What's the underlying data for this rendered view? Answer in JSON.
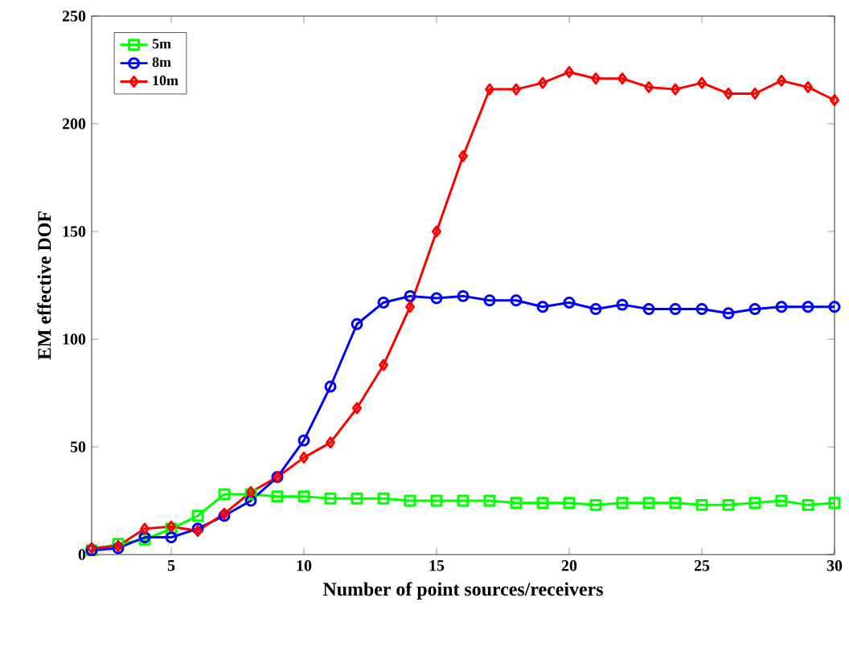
{
  "chart_data": {
    "type": "line",
    "xlabel": "Number of point sources/receivers",
    "ylabel": "EM effective DOF",
    "x": [
      2,
      3,
      4,
      5,
      6,
      7,
      8,
      9,
      10,
      11,
      12,
      13,
      14,
      15,
      16,
      17,
      18,
      19,
      20,
      21,
      22,
      23,
      24,
      25,
      26,
      27,
      28,
      29,
      30
    ],
    "series": [
      {
        "name": "5m",
        "color": "#00ff00",
        "marker": "square",
        "values": [
          2,
          5,
          7,
          12,
          18,
          28,
          28,
          27,
          27,
          26,
          26,
          26,
          25,
          25,
          25,
          25,
          24,
          24,
          24,
          23,
          24,
          24,
          24,
          23,
          23,
          24,
          25,
          23,
          24
        ]
      },
      {
        "name": "8m",
        "color": "#0000ff",
        "marker": "circle",
        "values": [
          2,
          3,
          8,
          8,
          12,
          18,
          25,
          36,
          53,
          78,
          107,
          117,
          120,
          119,
          120,
          118,
          118,
          115,
          117,
          114,
          116,
          114,
          114,
          114,
          112,
          114,
          115,
          115,
          115
        ]
      },
      {
        "name": "10m",
        "color": "#ff0000",
        "marker": "diamond",
        "values": [
          3,
          4,
          12,
          13,
          11,
          19,
          29,
          36,
          45,
          52,
          68,
          88,
          115,
          150,
          185,
          216,
          216,
          219,
          224,
          221,
          221,
          217,
          216,
          219,
          214,
          214,
          220,
          217,
          211
        ]
      }
    ],
    "xlim": [
      2,
      30
    ],
    "ylim": [
      0,
      250
    ],
    "xticks": [
      5,
      10,
      15,
      20,
      25,
      30
    ],
    "yticks": [
      0,
      50,
      100,
      150,
      200,
      250
    ],
    "grid": false,
    "legend": "top left",
    "line_style": "solid"
  }
}
